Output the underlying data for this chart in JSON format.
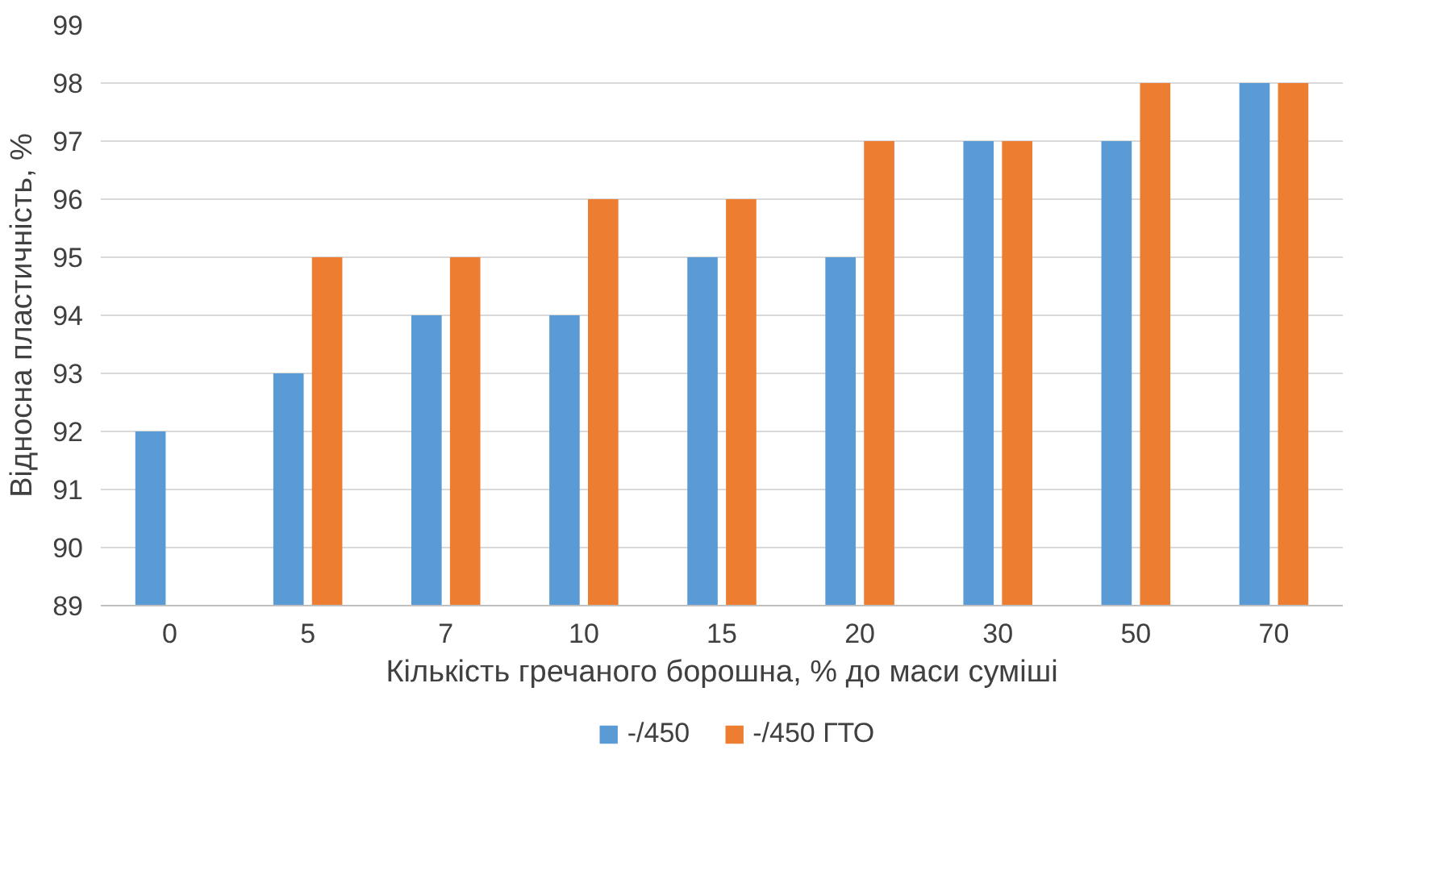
{
  "chart_data": {
    "type": "bar",
    "xlabel": "Кількість гречаного борошна, % до маси суміші",
    "ylabel": "Відносна пластичність, %",
    "categories": [
      "0",
      "5",
      "7",
      "10",
      "15",
      "20",
      "30",
      "50",
      "70"
    ],
    "series": [
      {
        "name": "-/450",
        "color": "#5b9bd5",
        "values": [
          92,
          93,
          94,
          94,
          95,
          95,
          97,
          97,
          98
        ]
      },
      {
        "name": "-/450 ГТО",
        "color": "#ed7d31",
        "values": [
          null,
          95,
          95,
          96,
          96,
          97,
          97,
          98,
          98
        ]
      }
    ],
    "ylim": [
      89,
      99
    ],
    "yticks": [
      89,
      90,
      91,
      92,
      93,
      94,
      95,
      96,
      97,
      98,
      99
    ],
    "grid": "y",
    "legend": "bottom"
  }
}
